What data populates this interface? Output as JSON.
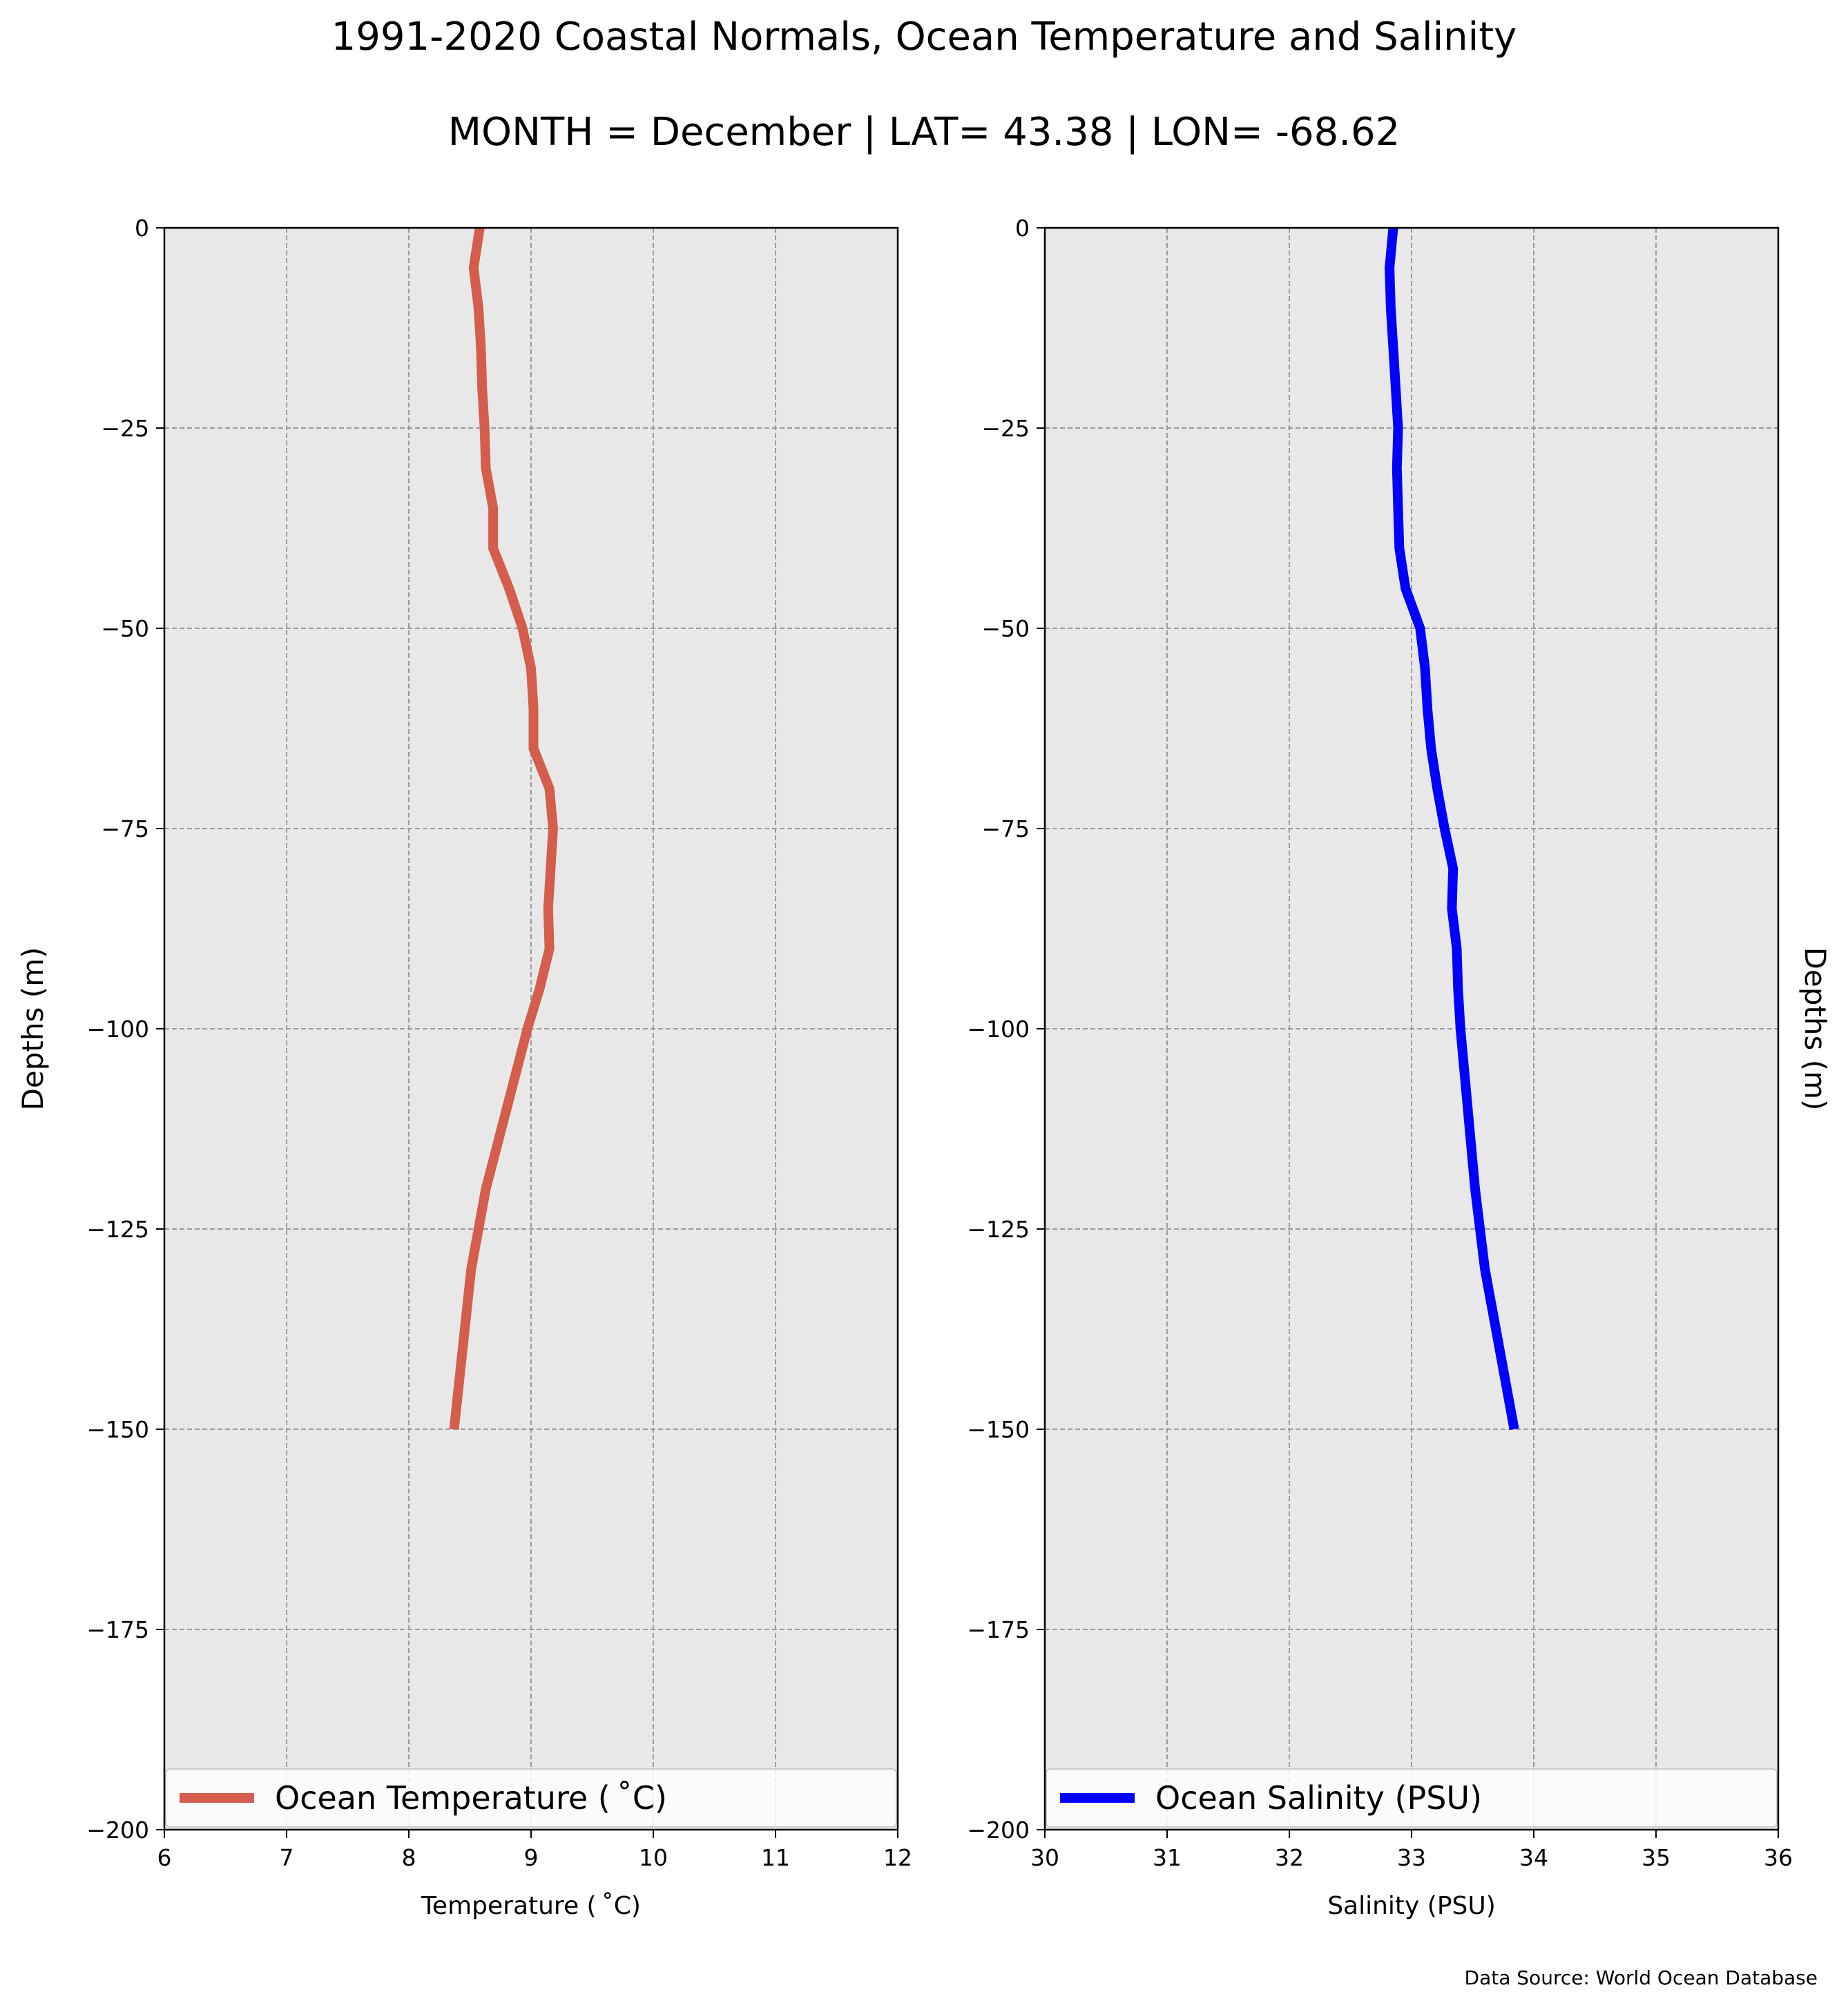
{
  "figure": {
    "title": "1991-2020 Coastal Normals, Ocean Temperature and Salinity",
    "subtitle": "MONTH = December | LAT= 43.38 | LON= -68.62",
    "source": "Data Source: World Ocean Database"
  },
  "colors": {
    "panel_bg": "#e8e8e8",
    "temperature": "#d45d4c",
    "salinity": "#0000ff",
    "grid": "#9a9a9a"
  },
  "chart_data": [
    {
      "type": "line",
      "xlabel": "Temperature ($^\\circ$C)",
      "xlabel_display": "Temperature ( ˚C)",
      "ylabel": "Depths (m)",
      "xlim": [
        6,
        12
      ],
      "ylim": [
        -200,
        0
      ],
      "xticks": [
        "6",
        "7",
        "8",
        "9",
        "10",
        "11",
        "12"
      ],
      "yticks": [
        "0",
        "−25",
        "−50",
        "−75",
        "−100",
        "−125",
        "−150",
        "−175",
        "−200"
      ],
      "grid": true,
      "legend_position": "bottom",
      "series": [
        {
          "name": "Ocean Temperature ( ˚C)",
          "color": "#d45d4c",
          "x": [
            8.58,
            8.53,
            8.57,
            8.59,
            8.6,
            8.62,
            8.63,
            8.69,
            8.69,
            8.82,
            8.93,
            9.0,
            9.02,
            9.02,
            9.15,
            9.18,
            9.16,
            9.14,
            9.15,
            9.07,
            8.97,
            8.63,
            8.51,
            8.37
          ],
          "y": [
            0,
            -5,
            -10,
            -15,
            -20,
            -25,
            -30,
            -35,
            -40,
            -45,
            -50,
            -55,
            -60,
            -65,
            -70,
            -75,
            -80,
            -85,
            -90,
            -95,
            -100,
            -120,
            -130,
            -150
          ]
        }
      ]
    },
    {
      "type": "line",
      "xlabel": "Salinity (PSU)",
      "ylabel": "Depths (m)",
      "xlim": [
        30,
        36
      ],
      "ylim": [
        -200,
        0
      ],
      "xticks": [
        "30",
        "31",
        "32",
        "33",
        "34",
        "35",
        "36"
      ],
      "yticks": [
        "0",
        "−25",
        "−50",
        "−75",
        "−100",
        "−125",
        "−150",
        "−175",
        "−200"
      ],
      "grid": true,
      "legend_position": "bottom",
      "series": [
        {
          "name": "Ocean Salinity (PSU)",
          "color": "#0000ff",
          "x": [
            32.85,
            32.82,
            32.83,
            32.85,
            32.87,
            32.89,
            32.88,
            32.89,
            32.9,
            32.95,
            33.07,
            33.11,
            33.13,
            33.16,
            33.21,
            33.27,
            33.34,
            33.33,
            33.37,
            33.38,
            33.4,
            33.52,
            33.6,
            33.84
          ],
          "y": [
            0,
            -5,
            -10,
            -15,
            -20,
            -25,
            -30,
            -35,
            -40,
            -45,
            -50,
            -55,
            -60,
            -65,
            -70,
            -75,
            -80,
            -85,
            -90,
            -95,
            -100,
            -120,
            -130,
            -150
          ]
        }
      ]
    }
  ]
}
